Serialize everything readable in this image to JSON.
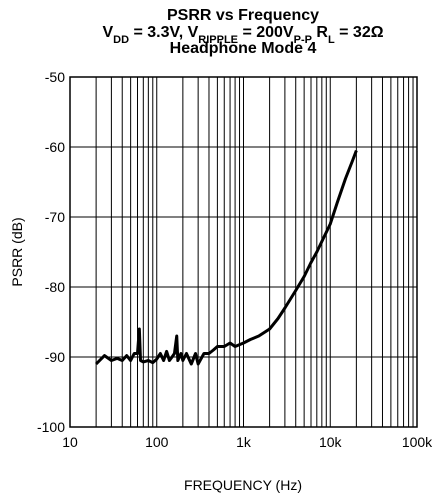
{
  "chart_data": {
    "type": "line",
    "title": "PSRR vs Frequency",
    "subtitle": [
      {
        "text": "V",
        "sub": "DD"
      },
      {
        "text": " = 3.3V, V",
        "sub": "RIPPLE"
      },
      {
        "text": " = 200V",
        "sub": "P-P"
      },
      {
        "text": " R",
        "sub": "L"
      },
      {
        "text": " = 32Ω"
      }
    ],
    "subtitle2": "Headphone Mode 4",
    "xlabel": "FREQUENCY (Hz)",
    "ylabel": "PSRR (dB)",
    "xscale": "log",
    "xlim": [
      10,
      100000
    ],
    "ylim": [
      -100,
      -50
    ],
    "xticks": [
      10,
      100,
      {
        "value": 1000,
        "label": "1k"
      },
      {
        "value": 10000,
        "label": "10k"
      },
      {
        "value": 100000,
        "label": "100k"
      }
    ],
    "xminor": [
      20,
      30,
      40,
      50,
      60,
      70,
      80,
      90,
      200,
      300,
      400,
      500,
      600,
      700,
      800,
      900,
      2000,
      3000,
      4000,
      5000,
      6000,
      7000,
      8000,
      9000,
      20000,
      30000,
      40000,
      50000,
      60000,
      70000,
      80000,
      90000
    ],
    "yticks": [
      -100,
      -90,
      -80,
      -70,
      -60,
      -50
    ],
    "grid": true,
    "series": [
      {
        "name": "PSRR",
        "color": "#000000",
        "x": [
          20,
          25,
          30,
          35,
          40,
          45,
          50,
          55,
          60,
          63,
          65,
          70,
          80,
          90,
          100,
          110,
          120,
          130,
          140,
          150,
          160,
          170,
          175,
          190,
          200,
          220,
          250,
          280,
          300,
          350,
          400,
          450,
          500,
          600,
          700,
          800,
          1000,
          1200,
          1500,
          2000,
          2500,
          3000,
          4000,
          5000,
          6000,
          7000,
          8000,
          10000,
          12000,
          15000,
          18000,
          20000
        ],
        "values": [
          -91,
          -89.8,
          -90.5,
          -90.2,
          -90.5,
          -89.8,
          -90.5,
          -89.5,
          -89.5,
          -86,
          -90.5,
          -90.7,
          -90.5,
          -90.8,
          -90.3,
          -89.5,
          -90.5,
          -89.2,
          -90.5,
          -90,
          -89.5,
          -87,
          -90.5,
          -89.5,
          -90.5,
          -89.5,
          -91,
          -89.5,
          -91,
          -89.5,
          -89.5,
          -89,
          -88.5,
          -88.5,
          -88,
          -88.5,
          -88,
          -87.5,
          -87,
          -86,
          -84.5,
          -83,
          -80.5,
          -78.5,
          -76.5,
          -75,
          -73.5,
          -71,
          -68,
          -64.5,
          -62,
          -60.5
        ]
      }
    ]
  }
}
